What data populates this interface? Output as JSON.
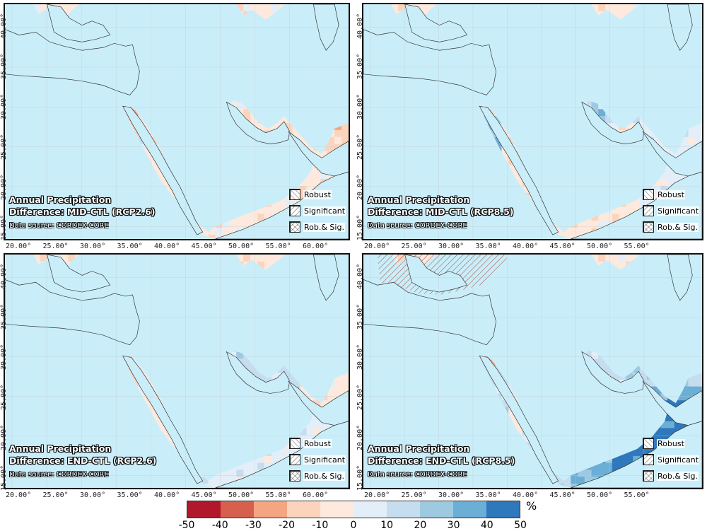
{
  "colors": {
    "sea": "#c9eefa",
    "bins": [
      "#b2182b",
      "#d6604d",
      "#f4a582",
      "#fcd4bd",
      "#fde9dd",
      "#e3eef8",
      "#c6dcef",
      "#9ecae1",
      "#6baed6",
      "#2f78bb"
    ]
  },
  "axes": {
    "yticks": [
      "15.00°",
      "20.00°",
      "25.00°",
      "30.00°",
      "35.00°",
      "40.00°"
    ],
    "xticks": [
      "20.00°",
      "25.00°",
      "30.00°",
      "35.00°",
      "40.00°",
      "45.00°",
      "50.00°",
      "55.00°",
      "60.00°"
    ]
  },
  "legend": {
    "robust": "Robust",
    "significant": "Significant",
    "robsig": "Rob.& Sig."
  },
  "colorbar": {
    "ticks": [
      "-50",
      "-40",
      "-30",
      "-20",
      "-10",
      "0",
      "10",
      "20",
      "30",
      "40",
      "50"
    ],
    "unit": "%"
  },
  "panels": [
    {
      "id": "mid26",
      "title1": "Annual Precipitation",
      "title2": "Difference: MID-CTL (RCP2.6)",
      "source": "Data source: CORDEX-CORE"
    },
    {
      "id": "mid85",
      "title1": "Annual Precipitation",
      "title2": "Difference: MID-CTL (RCP8.5)",
      "source": "Data source: CORDEX-CORE"
    },
    {
      "id": "end26",
      "title1": "Annual Precipitation",
      "title2": "Difference: END-CTL (RCP2.6)",
      "source": "Data source: CORDEX-CORE"
    },
    {
      "id": "end85",
      "title1": "Annual Precipitation",
      "title2": "Difference: END-CTL (RCP8.5)",
      "source": "Data source: CORDEX-CORE"
    }
  ]
}
